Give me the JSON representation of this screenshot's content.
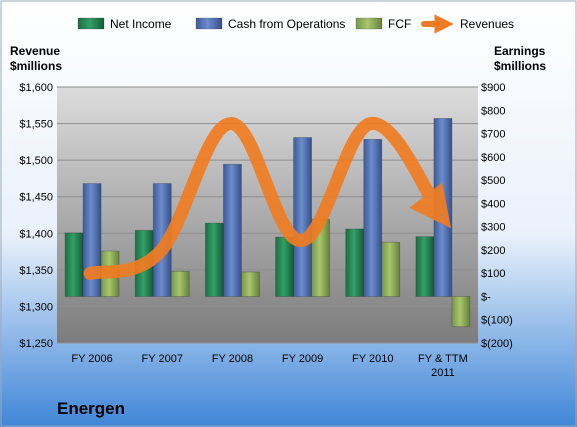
{
  "chart_data": {
    "type": "bar",
    "title": "Energen",
    "categories": [
      "FY 2006",
      "FY 2007",
      "FY 2008",
      "FY 2009",
      "FY 2010",
      "FY & TTM 2011"
    ],
    "left_axis": {
      "label_line1": "Revenue",
      "label_line2": "$millions",
      "ylim": [
        1250,
        1600
      ],
      "ticks": [
        1250,
        1300,
        1350,
        1400,
        1450,
        1500,
        1550,
        1600
      ],
      "tick_labels": [
        "$1,250",
        "$1,300",
        "$1,350",
        "$1,400",
        "$1,450",
        "$1,500",
        "$1,550",
        "$1,600"
      ]
    },
    "right_axis": {
      "label_line1": "Earnings",
      "label_line2": "$millions",
      "ylim": [
        -200,
        900
      ],
      "ticks": [
        -200,
        -100,
        0,
        100,
        200,
        300,
        400,
        500,
        600,
        700,
        800,
        900
      ],
      "tick_labels": [
        "$(200)",
        "$(100)",
        "$-",
        "$100",
        "$200",
        "$300",
        "$400",
        "$500",
        "$600",
        "$700",
        "$800",
        "$900"
      ]
    },
    "series": [
      {
        "name": "Net Income",
        "type": "bar",
        "axis": "right",
        "color": "#1e7d4a",
        "values": [
          273,
          284,
          315,
          255,
          290,
          257
        ]
      },
      {
        "name": "Cash from Operations",
        "type": "bar",
        "axis": "right",
        "color": "#4a6ab0",
        "values": [
          485,
          485,
          568,
          683,
          675,
          765
        ]
      },
      {
        "name": "FCF",
        "type": "bar",
        "axis": "right",
        "color": "#8aab52",
        "values": [
          195,
          108,
          105,
          332,
          233,
          -130
        ]
      },
      {
        "name": "Revenues",
        "type": "line",
        "axis": "left",
        "color": "#f07c22",
        "values": [
          1345,
          1375,
          1550,
          1390,
          1550,
          1425
        ]
      }
    ],
    "legend_position": "top",
    "grid": true
  }
}
